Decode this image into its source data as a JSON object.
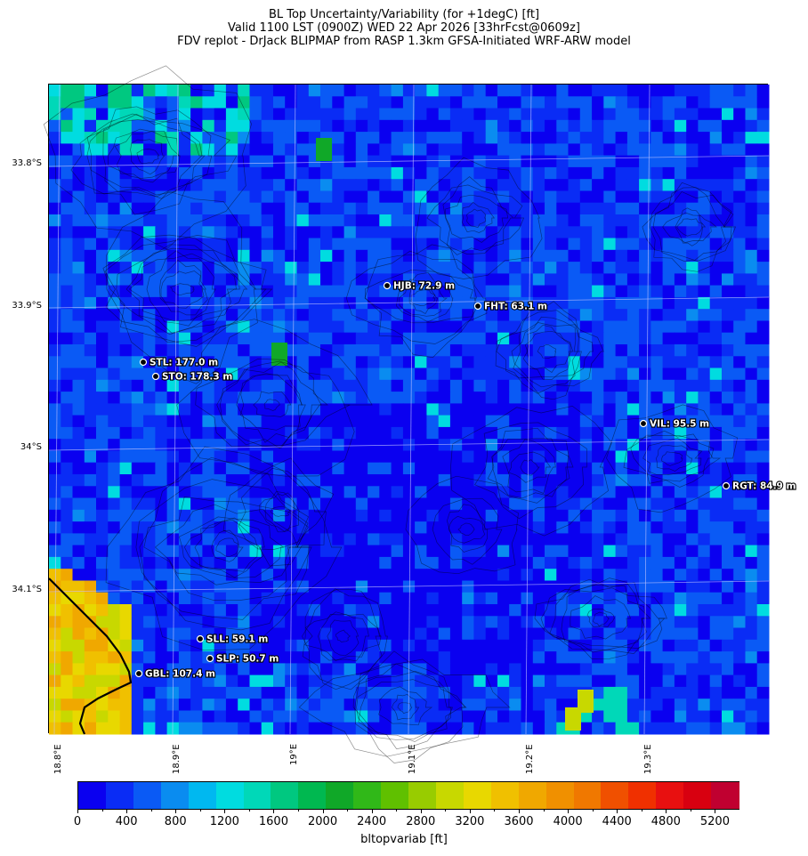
{
  "title_lines": [
    "BL Top Uncertainty/Variability (for +1degC) [ft]",
    "Valid 1100 LST (0900Z) WED 22 Apr 2026 [33hrFcst@0609z]",
    "FDV replot - DrJack BLIPMAP from RASP 1.3km GFSA-Initiated WRF-ARW model"
  ],
  "map": {
    "lat_labels": [
      "33.8°S",
      "33.9°S",
      "34°S",
      "34.1°S"
    ],
    "lon_labels": [
      "18.8°E",
      "18.9°E",
      "19°E",
      "19.1°E",
      "19.2°E",
      "19.3°E"
    ],
    "stations": [
      {
        "label": "HJB: 72.9 m"
      },
      {
        "label": "FHT: 63.1 m"
      },
      {
        "label": "STL: 177.0 m"
      },
      {
        "label": "STO: 178.3 m"
      },
      {
        "label": "VIL: 95.5 m"
      },
      {
        "label": "RGT: 84.9 m"
      },
      {
        "label": "SLL: 59.1 m"
      },
      {
        "label": "SLP: 50.7 m"
      },
      {
        "label": "GBL: 107.4 m"
      }
    ]
  },
  "colorbar": {
    "ticks": [
      "0",
      "400",
      "800",
      "1200",
      "1600",
      "2000",
      "2400",
      "2800",
      "3200",
      "3600",
      "4000",
      "4400",
      "4800",
      "5200"
    ],
    "label": "bltopvariab [ft]",
    "colors": [
      "#0a00f0",
      "#0a2cf5",
      "#0a5af5",
      "#0a8cf0",
      "#00b8f0",
      "#00dce0",
      "#00d8b8",
      "#00c880",
      "#00b850",
      "#10a828",
      "#30b818",
      "#60c000",
      "#98cc00",
      "#c8d800",
      "#e8d800",
      "#f0c000",
      "#f0a800",
      "#f09000",
      "#f07800",
      "#f05000",
      "#f03000",
      "#e81010",
      "#d80010",
      "#c00030"
    ]
  }
}
